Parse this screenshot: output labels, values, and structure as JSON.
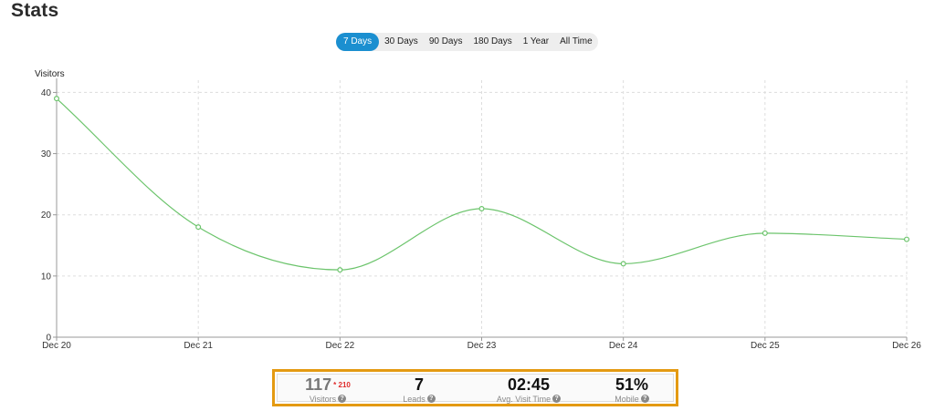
{
  "page": {
    "title": "Stats"
  },
  "range_tabs": [
    {
      "label": "7 Days",
      "active": true
    },
    {
      "label": "30 Days",
      "active": false
    },
    {
      "label": "90 Days",
      "active": false
    },
    {
      "label": "180 Days",
      "active": false
    },
    {
      "label": "1 Year",
      "active": false
    },
    {
      "label": "All Time",
      "active": false
    }
  ],
  "colors": {
    "line": "#6cc46c",
    "accent": "#1b8fd0",
    "highlight_border": "#e49a12",
    "diff": "#e02b2b"
  },
  "chart_data": {
    "type": "line",
    "ylabel": "Visitors",
    "xlabel": "",
    "title": "",
    "categories": [
      "Dec 20",
      "Dec 21",
      "Dec 22",
      "Dec 23",
      "Dec 24",
      "Dec 25",
      "Dec 26"
    ],
    "series": [
      {
        "values": [
          39,
          18,
          11,
          21,
          12,
          17,
          16
        ]
      }
    ],
    "ylim": [
      0,
      42
    ],
    "yticks": [
      0,
      10,
      20,
      30,
      40
    ],
    "grid": true,
    "smooth": true
  },
  "summary": {
    "visitors": {
      "value": "117",
      "diff": "* 210",
      "label": "Visitors"
    },
    "leads": {
      "value": "7",
      "label": "Leads"
    },
    "avg_visit_time": {
      "value": "02:45",
      "label": "Avg. Visit Time"
    },
    "mobile": {
      "value": "51%",
      "label": "Mobile"
    }
  }
}
